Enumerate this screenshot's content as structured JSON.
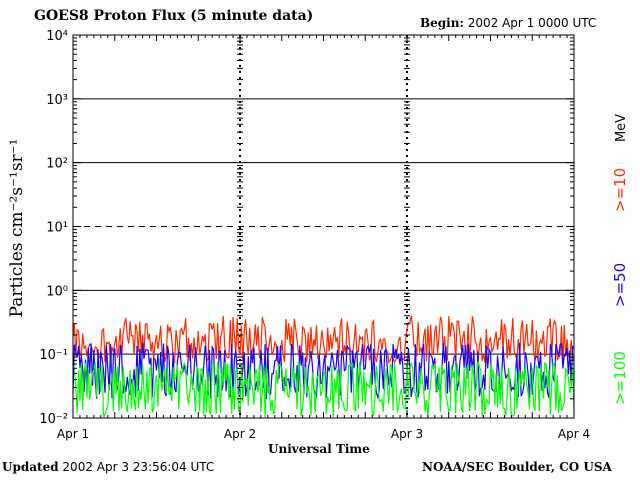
{
  "header": {
    "title": "GOES8 Proton Flux (5 minute data)",
    "begin_label": "Begin:",
    "begin_value": "2002 Apr 1 0000 UTC"
  },
  "footer": {
    "updated_label": "Updated",
    "updated_value": "2002 Apr  3 23:56:04 UTC",
    "credit": "NOAA/SEC Boulder, CO USA"
  },
  "chart_data": {
    "type": "line",
    "title": "GOES8 Proton Flux (5 minute data)",
    "xlabel": "Universal Time",
    "ylabel": "Particles cm⁻²s⁻¹sr⁻¹",
    "y_scale": "log",
    "ylim": [
      0.01,
      10000
    ],
    "y_ticks": [
      {
        "value": 10000,
        "label": "10⁴"
      },
      {
        "value": 1000,
        "label": "10³"
      },
      {
        "value": 100,
        "label": "10²"
      },
      {
        "value": 10,
        "label": "10¹"
      },
      {
        "value": 1,
        "label": "10⁰"
      },
      {
        "value": 0.1,
        "label": "10⁻¹"
      },
      {
        "value": 0.01,
        "label": "10⁻²"
      }
    ],
    "x_ticks": [
      "Apr 1",
      "Apr 2",
      "Apr 3",
      "Apr 4"
    ],
    "xlim": [
      "2002-04-01 00:00",
      "2002-04-04 00:00"
    ],
    "grid": true,
    "dashed_gridline_at": 10,
    "series": [
      {
        "name": ">=10",
        "color": "#ff2a00",
        "typical_range": [
          0.08,
          0.4
        ],
        "median": 0.15
      },
      {
        "name": ">=50",
        "color": "#1a00ff",
        "typical_range": [
          0.02,
          0.15
        ],
        "median": 0.06
      },
      {
        "name": ">=100",
        "color": "#00ff00",
        "typical_range": [
          0.01,
          0.08
        ],
        "median": 0.03
      }
    ],
    "legend": {
      "position": "right",
      "unit": "MeV"
    }
  }
}
